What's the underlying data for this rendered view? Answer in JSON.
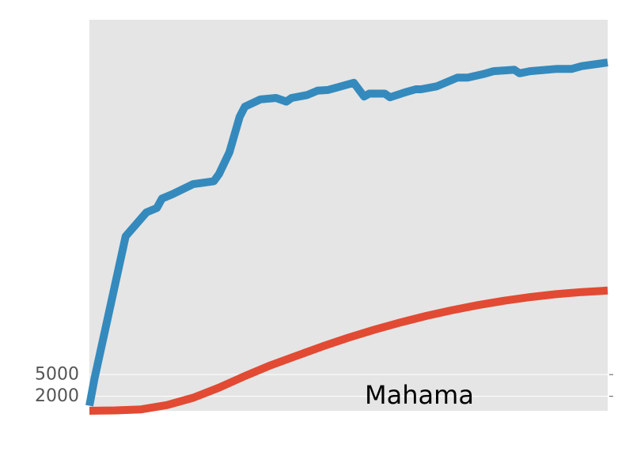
{
  "chart_data": {
    "type": "line",
    "title": "",
    "xlabel": "",
    "ylabel": "",
    "xlim": [
      0,
      100
    ],
    "ylim": [
      0,
      54000
    ],
    "grid": true,
    "background": "#e5e5e5",
    "yticks": [
      2000,
      5000
    ],
    "annotation": "Mahama",
    "series": [
      {
        "color": "#348abd",
        "x": [
          0,
          1,
          7,
          11,
          13,
          14,
          16,
          20,
          24,
          25,
          27,
          29,
          30,
          33,
          36,
          38,
          39,
          42,
          44,
          46,
          48,
          51,
          53,
          54,
          57,
          58,
          61,
          63,
          64,
          67,
          71,
          73,
          76,
          78,
          82,
          83,
          85,
          90,
          93,
          95,
          100
        ],
        "values": [
          700,
          4500,
          24100,
          27400,
          28000,
          29300,
          29900,
          31300,
          31700,
          32700,
          35700,
          40600,
          42000,
          43000,
          43200,
          42700,
          43200,
          43600,
          44200,
          44300,
          44700,
          45300,
          43400,
          43800,
          43800,
          43300,
          44000,
          44400,
          44400,
          44800,
          46000,
          46000,
          46500,
          46900,
          47100,
          46600,
          46900,
          47200,
          47200,
          47600,
          48100
        ]
      },
      {
        "color": "#e24a33",
        "x": [
          0,
          5,
          10,
          15,
          20,
          25,
          30,
          35,
          40,
          45,
          50,
          55,
          60,
          65,
          70,
          75,
          80,
          85,
          90,
          95,
          100
        ],
        "values": [
          0,
          60,
          200,
          800,
          1800,
          3200,
          4800,
          6300,
          7600,
          8900,
          10100,
          11200,
          12200,
          13100,
          13900,
          14600,
          15200,
          15700,
          16100,
          16400,
          16600
        ]
      }
    ]
  }
}
